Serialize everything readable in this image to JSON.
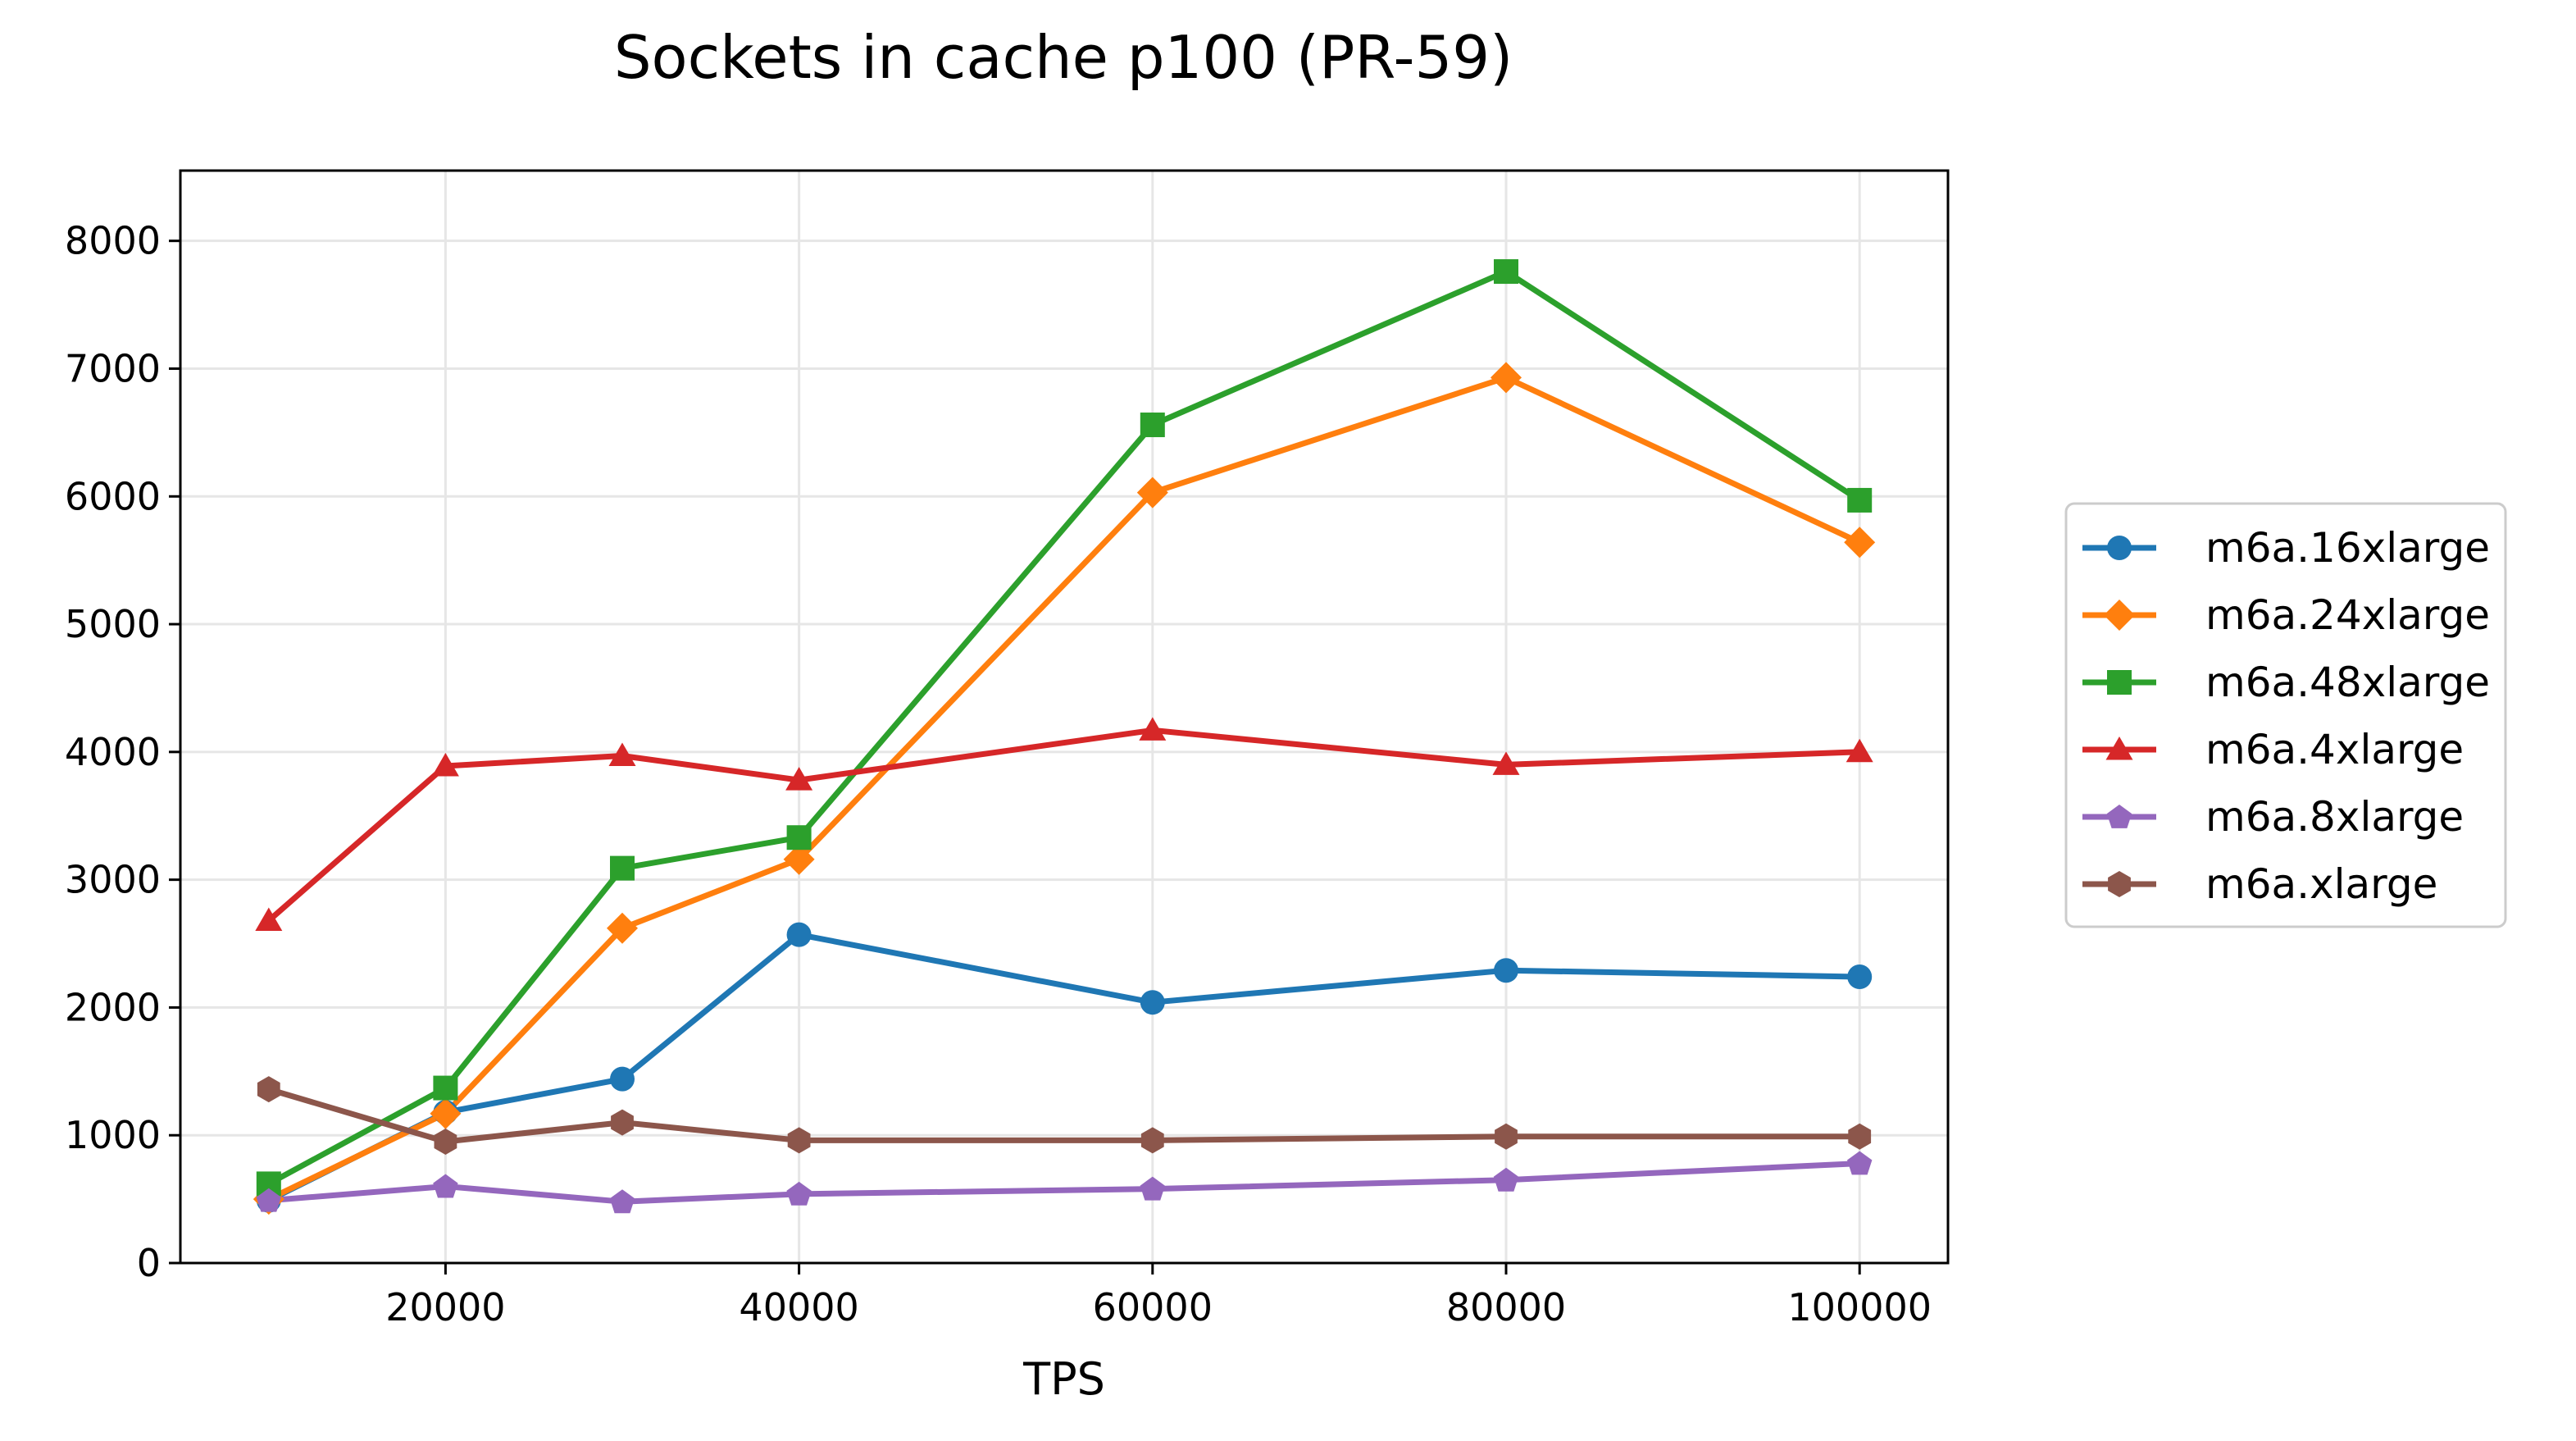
{
  "chart_data": {
    "type": "line",
    "title": "Sockets in cache p100 (PR-59)",
    "xlabel": "TPS",
    "ylabel": "",
    "x": [
      10000,
      20000,
      30000,
      40000,
      60000,
      80000,
      100000
    ],
    "xlim": [
      5000,
      105000
    ],
    "ylim": [
      0,
      8550
    ],
    "xticks": [
      "20000",
      "40000",
      "60000",
      "80000",
      "100000"
    ],
    "yticks": [
      "0",
      "1000",
      "2000",
      "3000",
      "4000",
      "5000",
      "6000",
      "7000",
      "8000"
    ],
    "grid": true,
    "legend_position": "right",
    "series": [
      {
        "name": "m6a.16xlarge",
        "color": "#1f77b4",
        "marker": "circle",
        "values": [
          490,
          1180,
          1440,
          2570,
          2040,
          2290,
          2240
        ]
      },
      {
        "name": "m6a.24xlarge",
        "color": "#ff7f0e",
        "marker": "diamond",
        "values": [
          500,
          1170,
          2620,
          3160,
          6030,
          6930,
          5640
        ]
      },
      {
        "name": "m6a.48xlarge",
        "color": "#2ca02c",
        "marker": "square",
        "values": [
          620,
          1370,
          3090,
          3330,
          6560,
          7760,
          5970
        ]
      },
      {
        "name": "m6a.4xlarge",
        "color": "#d62728",
        "marker": "triangle",
        "values": [
          2680,
          3890,
          3970,
          3780,
          4170,
          3900,
          4000
        ]
      },
      {
        "name": "m6a.8xlarge",
        "color": "#9467bd",
        "marker": "pentagon",
        "values": [
          490,
          600,
          480,
          540,
          580,
          650,
          780
        ]
      },
      {
        "name": "m6a.xlarge",
        "color": "#8c564b",
        "marker": "hexagon",
        "values": [
          1360,
          950,
          1100,
          960,
          960,
          990,
          990
        ]
      }
    ]
  }
}
